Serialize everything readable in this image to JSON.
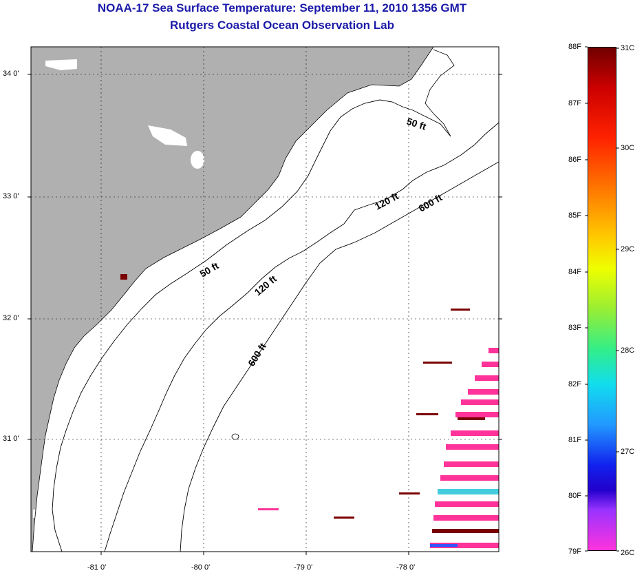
{
  "header": {
    "title": "NOAA-17 Sea Surface Temperature:  September 11, 2010 1356 GMT",
    "subtitle": "Rutgers Coastal Ocean Observation Lab"
  },
  "axes": {
    "lat_labels": [
      "34 0'",
      "33 0'",
      "32 0'",
      "31 0'"
    ],
    "lon_labels": [
      "-81 0'",
      "-80 0'",
      "-79 0'",
      "-78 0'"
    ]
  },
  "contours": {
    "labels": [
      "50 ft",
      "120 ft",
      "600 ft",
      "50 ft",
      "120 ft",
      "600 ft"
    ]
  },
  "colorbar": {
    "fahrenheit": [
      "88F",
      "87F",
      "86F",
      "85F",
      "84F",
      "83F",
      "82F",
      "81F",
      "80F",
      "79F"
    ],
    "celsius": [
      "31C",
      "30C",
      "29C",
      "28C",
      "27C",
      "26C"
    ]
  },
  "colors": {
    "land": "#b0b0b0",
    "title": "#1a1aa8",
    "sst_speckle_pink": "#ff3399",
    "sst_speckle_dark": "#7a0000"
  }
}
